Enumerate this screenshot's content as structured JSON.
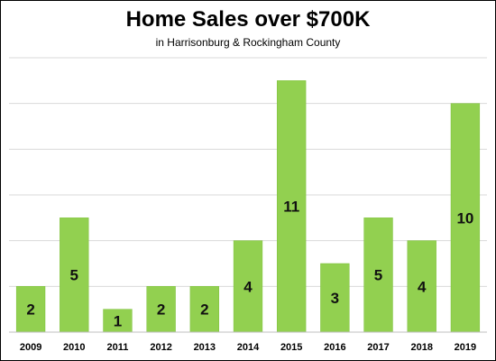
{
  "chart_data": {
    "type": "bar",
    "title": "Home Sales over $700K",
    "subtitle": "in Harrisonburg & Rockingham County",
    "categories": [
      "2009",
      "2010",
      "2011",
      "2012",
      "2013",
      "2014",
      "2015",
      "2016",
      "2017",
      "2018",
      "2019"
    ],
    "values": [
      2,
      5,
      1,
      2,
      2,
      4,
      11,
      3,
      5,
      4,
      10
    ],
    "xlabel": "",
    "ylabel": "",
    "ylim": [
      0,
      12
    ],
    "grid": true,
    "legend": "none",
    "bar_color": "#92D050",
    "bar_edge_color": "#7BBF38",
    "grid_color": "#D9D9D9",
    "show_data_labels": true
  }
}
